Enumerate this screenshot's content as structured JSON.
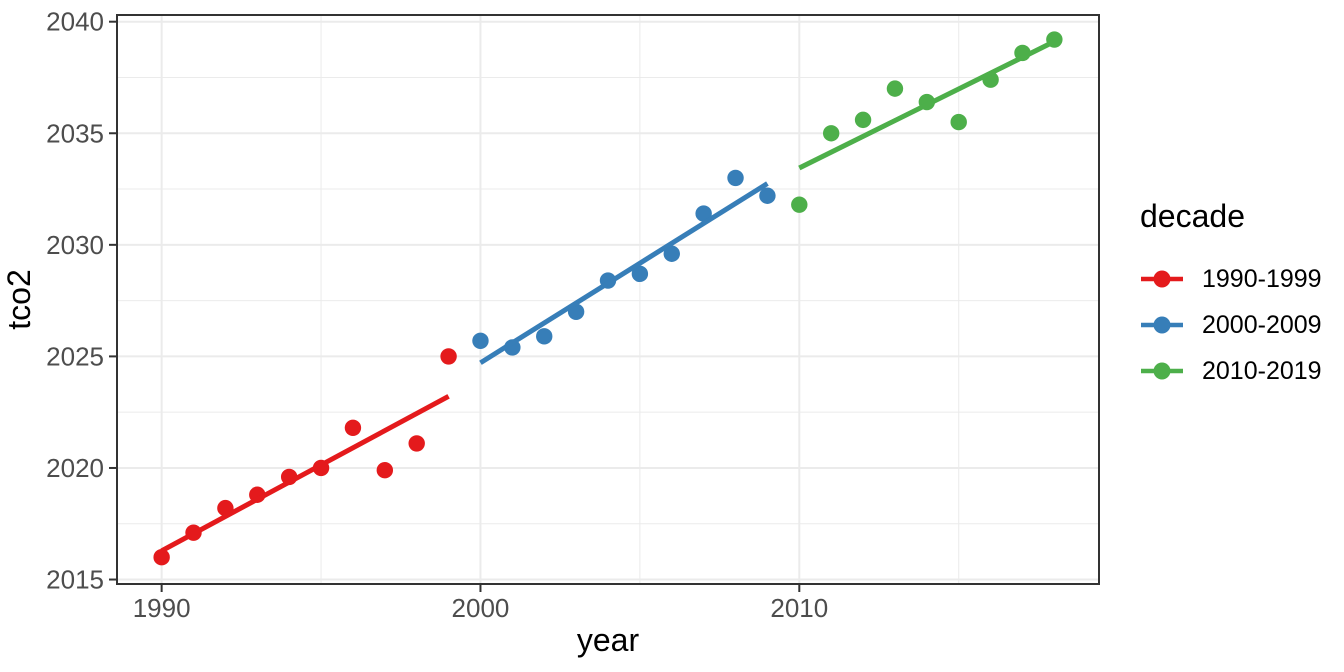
{
  "chart_data": {
    "type": "scatter",
    "title": "",
    "xlabel": "year",
    "ylabel": "tco2",
    "legend_title": "decade",
    "legend_position": "right",
    "grid": true,
    "point_style": "filled-circle",
    "trend": "linear-fit-per-series",
    "xlim": [
      1988.6,
      2019.4
    ],
    "ylim": [
      2014.8,
      2040.3
    ],
    "x_ticks": [
      1990,
      2000,
      2010
    ],
    "x_minor_ticks": [
      1995,
      2005,
      2015
    ],
    "y_ticks": [
      2015,
      2020,
      2025,
      2030,
      2035,
      2040
    ],
    "y_minor_ticks": [
      2017.5,
      2022.5,
      2027.5,
      2032.5,
      2037.5
    ],
    "series": [
      {
        "name": "1990-1999",
        "color": "#E41A1C",
        "x": [
          1990,
          1991,
          1992,
          1993,
          1994,
          1995,
          1996,
          1997,
          1998,
          1999
        ],
        "y": [
          2016.0,
          2017.1,
          2018.2,
          2018.8,
          2019.6,
          2020.0,
          2021.8,
          2019.9,
          2021.1,
          2025.0
        ]
      },
      {
        "name": "2000-2009",
        "color": "#377EB8",
        "x": [
          2000,
          2001,
          2002,
          2003,
          2004,
          2005,
          2006,
          2007,
          2008,
          2009
        ],
        "y": [
          2025.7,
          2025.4,
          2025.9,
          2027.0,
          2028.4,
          2028.7,
          2029.6,
          2031.4,
          2033.0,
          2032.2
        ]
      },
      {
        "name": "2010-2019",
        "color": "#4DAF4A",
        "x": [
          2010,
          2011,
          2012,
          2013,
          2014,
          2015,
          2016,
          2017,
          2018
        ],
        "y": [
          2031.8,
          2035.0,
          2035.6,
          2037.0,
          2036.4,
          2035.5,
          2037.4,
          2038.6,
          2039.2
        ]
      }
    ]
  },
  "styles": {
    "background": "#FFFFFF",
    "panel_background": "#FFFFFF",
    "panel_border_color": "#333333",
    "grid_color": "#EBEBEB",
    "tick_color": "#333333",
    "tick_label_color": "#4D4D4D",
    "axis_title_color": "#000000"
  }
}
